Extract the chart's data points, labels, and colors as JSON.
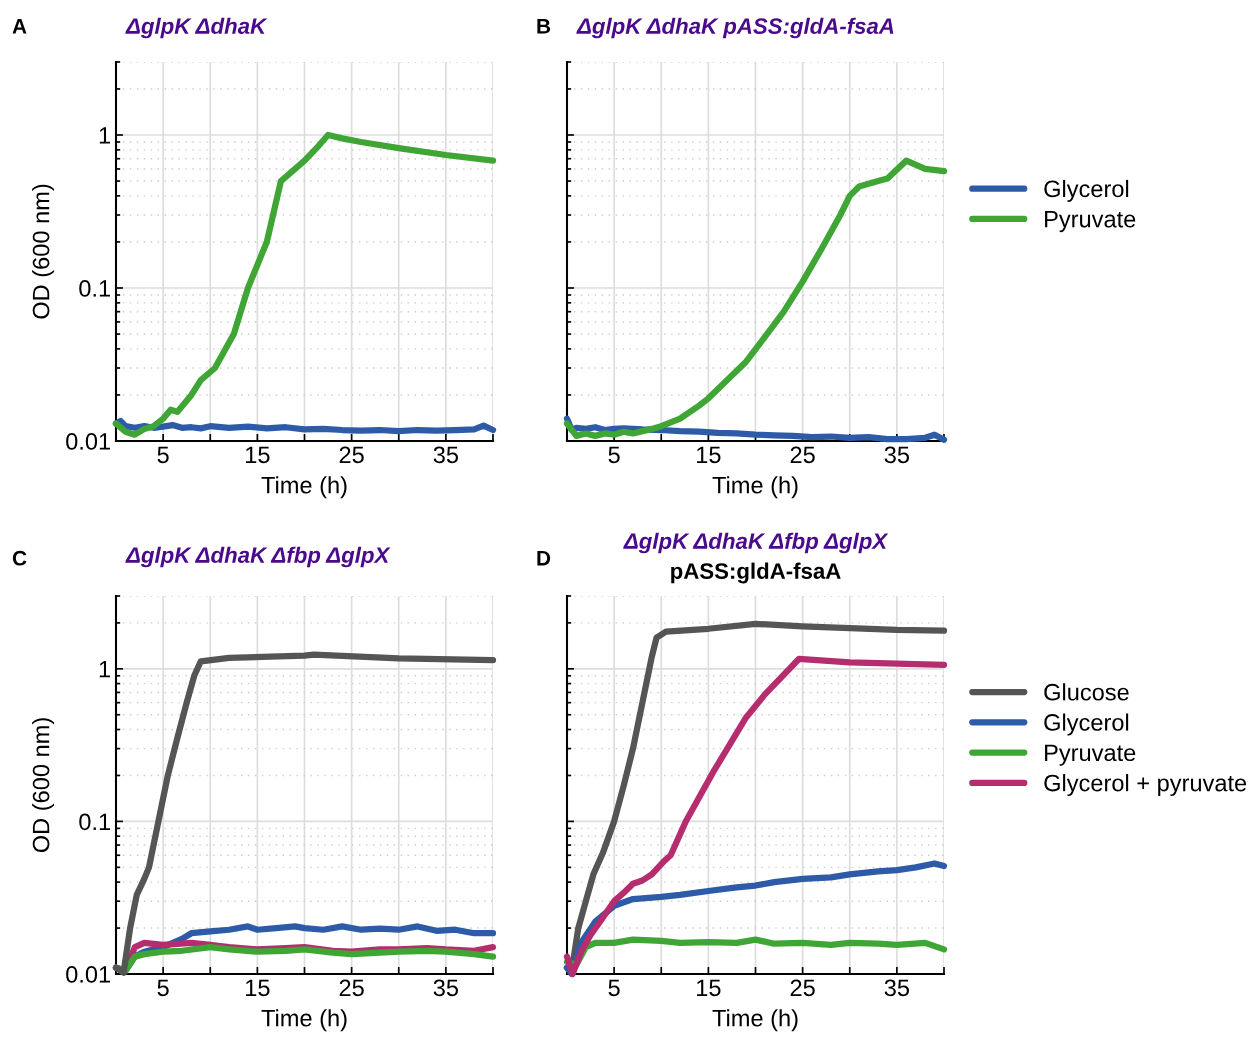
{
  "chart_data": [
    {
      "type": "line",
      "title": "ΔglpK ΔdhaK",
      "annotations": [
        "A"
      ],
      "xlabel": "Time (h)",
      "ylabel": "OD (600 nm)",
      "log": "y",
      "xlim": [
        0,
        40
      ],
      "ylim": [
        0.01,
        3
      ],
      "xticks": [
        5,
        {
          "value": 10,
          "label": null
        },
        15,
        {
          "value": 20,
          "label": null
        },
        25,
        {
          "value": 30,
          "label": null
        },
        35,
        {
          "value": 40,
          "label": null
        }
      ],
      "yticks": [
        0.01,
        {
          "value": 0.02,
          "label": null
        },
        {
          "value": 0.03,
          "label": null
        },
        {
          "value": 0.04,
          "label": null
        },
        {
          "value": 0.05,
          "label": null
        },
        {
          "value": 0.06,
          "label": null
        },
        {
          "value": 0.07,
          "label": null
        },
        {
          "value": 0.08,
          "label": null
        },
        {
          "value": 0.09,
          "label": null
        },
        0.1,
        {
          "value": 0.2,
          "label": null
        },
        {
          "value": 0.3,
          "label": null
        },
        {
          "value": 0.4,
          "label": null
        },
        {
          "value": 0.5,
          "label": null
        },
        {
          "value": 0.6,
          "label": null
        },
        {
          "value": 0.7,
          "label": null
        },
        {
          "value": 0.8,
          "label": null
        },
        {
          "value": 0.9,
          "label": null
        },
        1,
        {
          "value": 2,
          "label": null
        },
        {
          "value": 3,
          "label": null
        }
      ],
      "grid": true,
      "legend": false,
      "series": [
        {
          "color": "#2e5ba8",
          "x": [
            0,
            0.5,
            1,
            2,
            3,
            4,
            5,
            6,
            7,
            8,
            9,
            10,
            12,
            14,
            16,
            18,
            20,
            22,
            24,
            26,
            28,
            30,
            32,
            34,
            36,
            38,
            39,
            40
          ],
          "values": [
            0.013,
            0.0135,
            0.0125,
            0.0122,
            0.0125,
            0.0122,
            0.0124,
            0.0127,
            0.0122,
            0.0123,
            0.0121,
            0.0125,
            0.0122,
            0.0124,
            0.0121,
            0.0123,
            0.0119,
            0.012,
            0.0118,
            0.0117,
            0.0118,
            0.0116,
            0.0118,
            0.0117,
            0.0118,
            0.0119,
            0.0126,
            0.0118
          ]
        },
        {
          "color": "#3fa535",
          "x": [
            0,
            1,
            2,
            3,
            4,
            5,
            5.8,
            6.5,
            8,
            9,
            10.5,
            12.5,
            14,
            16,
            17.5,
            19,
            20,
            21.5,
            22.5,
            24,
            26,
            30,
            35,
            40
          ],
          "values": [
            0.013,
            0.0115,
            0.011,
            0.012,
            0.0125,
            0.014,
            0.016,
            0.0155,
            0.02,
            0.025,
            0.03,
            0.05,
            0.1,
            0.2,
            0.5,
            0.6,
            0.68,
            0.85,
            1.0,
            0.95,
            0.9,
            0.82,
            0.74,
            0.68
          ]
        }
      ]
    },
    {
      "type": "line",
      "title": "ΔglpK ΔdhaK pASS:gldA-fsaA",
      "annotations": [
        "B"
      ],
      "xlabel": "Time (h)",
      "log": "y",
      "xlim": [
        0,
        40
      ],
      "ylim": [
        0.01,
        3
      ],
      "tick_labels": "x",
      "xticks": [
        5,
        {
          "value": 10,
          "label": null
        },
        15,
        {
          "value": 20,
          "label": null
        },
        25,
        {
          "value": 30,
          "label": null
        },
        35,
        {
          "value": 40,
          "label": null
        }
      ],
      "yticks": [
        0.01,
        {
          "value": 0.02,
          "label": null
        },
        {
          "value": 0.03,
          "label": null
        },
        {
          "value": 0.04,
          "label": null
        },
        {
          "value": 0.05,
          "label": null
        },
        {
          "value": 0.06,
          "label": null
        },
        {
          "value": 0.07,
          "label": null
        },
        {
          "value": 0.08,
          "label": null
        },
        {
          "value": 0.09,
          "label": null
        },
        0.1,
        {
          "value": 0.2,
          "label": null
        },
        {
          "value": 0.3,
          "label": null
        },
        {
          "value": 0.4,
          "label": null
        },
        {
          "value": 0.5,
          "label": null
        },
        {
          "value": 0.6,
          "label": null
        },
        {
          "value": 0.7,
          "label": null
        },
        {
          "value": 0.8,
          "label": null
        },
        {
          "value": 0.9,
          "label": null
        },
        1,
        {
          "value": 2,
          "label": null
        },
        {
          "value": 3,
          "label": null
        }
      ],
      "grid": true,
      "legend": "right",
      "series": [
        {
          "name": "Glycerol",
          "color": "#2e5ba8",
          "x": [
            0,
            0.5,
            1,
            2,
            3,
            4,
            5,
            6,
            8,
            10,
            12,
            14,
            16,
            18,
            20,
            22,
            24,
            26,
            28,
            30,
            32,
            34,
            36,
            38,
            39,
            40
          ],
          "values": [
            0.014,
            0.0118,
            0.0122,
            0.012,
            0.0123,
            0.0118,
            0.012,
            0.0121,
            0.0119,
            0.0118,
            0.0116,
            0.0115,
            0.0113,
            0.0112,
            0.011,
            0.0109,
            0.0108,
            0.0106,
            0.0107,
            0.0105,
            0.0106,
            0.0103,
            0.0103,
            0.0105,
            0.011,
            0.0102
          ]
        },
        {
          "name": "Pyruvate",
          "color": "#3fa535",
          "x": [
            0,
            1,
            2,
            3,
            4,
            5,
            6,
            7,
            8,
            9,
            10,
            12,
            14,
            15,
            17,
            19,
            21,
            23,
            25,
            27,
            29,
            30,
            31,
            33,
            34,
            36,
            38,
            40
          ],
          "values": [
            0.013,
            0.0108,
            0.0112,
            0.0108,
            0.0112,
            0.011,
            0.0115,
            0.0112,
            0.0116,
            0.012,
            0.0125,
            0.014,
            0.017,
            0.019,
            0.025,
            0.033,
            0.048,
            0.07,
            0.11,
            0.18,
            0.3,
            0.4,
            0.46,
            0.5,
            0.52,
            0.68,
            0.6,
            0.58
          ]
        }
      ]
    },
    {
      "type": "line",
      "title": "ΔglpK ΔdhaK Δfbp ΔglpX",
      "annotations": [
        "C"
      ],
      "xlabel": "Time (h)",
      "ylabel": "OD (600 nm)",
      "log": "y",
      "xlim": [
        0,
        40
      ],
      "ylim": [
        0.01,
        3
      ],
      "xticks": [
        5,
        {
          "value": 10,
          "label": null
        },
        15,
        {
          "value": 20,
          "label": null
        },
        25,
        {
          "value": 30,
          "label": null
        },
        35,
        {
          "value": 40,
          "label": null
        }
      ],
      "yticks": [
        0.01,
        {
          "value": 0.02,
          "label": null
        },
        {
          "value": 0.03,
          "label": null
        },
        {
          "value": 0.04,
          "label": null
        },
        {
          "value": 0.05,
          "label": null
        },
        {
          "value": 0.06,
          "label": null
        },
        {
          "value": 0.07,
          "label": null
        },
        {
          "value": 0.08,
          "label": null
        },
        {
          "value": 0.09,
          "label": null
        },
        0.1,
        {
          "value": 0.2,
          "label": null
        },
        {
          "value": 0.3,
          "label": null
        },
        {
          "value": 0.4,
          "label": null
        },
        {
          "value": 0.5,
          "label": null
        },
        {
          "value": 0.6,
          "label": null
        },
        {
          "value": 0.7,
          "label": null
        },
        {
          "value": 0.8,
          "label": null
        },
        {
          "value": 0.9,
          "label": null
        },
        1,
        {
          "value": 2,
          "label": null
        },
        {
          "value": 3,
          "label": null
        }
      ],
      "grid": true,
      "legend": false,
      "series": [
        {
          "color": "#2e5ba8",
          "x": [
            0,
            1,
            2,
            3,
            5,
            7,
            8,
            10,
            12,
            14,
            15,
            17,
            19,
            20,
            22,
            24,
            26,
            28,
            30,
            32,
            34,
            36,
            38,
            40
          ],
          "values": [
            0.011,
            0.0105,
            0.013,
            0.014,
            0.015,
            0.017,
            0.0185,
            0.019,
            0.0195,
            0.0205,
            0.0195,
            0.02,
            0.0205,
            0.02,
            0.0195,
            0.0205,
            0.0195,
            0.0198,
            0.0195,
            0.0205,
            0.0192,
            0.0195,
            0.0185,
            0.0185
          ]
        },
        {
          "color": "#b52d6e",
          "x": [
            0,
            1,
            2,
            3,
            5,
            8,
            10,
            12,
            15,
            18,
            20,
            23,
            25,
            28,
            30,
            33,
            35,
            38,
            40
          ],
          "values": [
            0.011,
            0.0105,
            0.015,
            0.016,
            0.0155,
            0.016,
            0.0155,
            0.015,
            0.0145,
            0.0148,
            0.015,
            0.0142,
            0.014,
            0.0145,
            0.0145,
            0.0148,
            0.0145,
            0.0142,
            0.015
          ]
        },
        {
          "color": "#3fa535",
          "x": [
            0,
            1,
            2,
            3,
            5,
            7,
            10,
            12,
            15,
            18,
            20,
            23,
            25,
            28,
            30,
            33,
            35,
            38,
            40
          ],
          "values": [
            0.011,
            0.0105,
            0.013,
            0.0135,
            0.014,
            0.0142,
            0.015,
            0.0145,
            0.014,
            0.0142,
            0.0145,
            0.0138,
            0.0135,
            0.0138,
            0.014,
            0.0142,
            0.014,
            0.0135,
            0.013
          ]
        },
        {
          "color": "#555555",
          "x": [
            0,
            0.8,
            1.5,
            2.2,
            3,
            3.5,
            4.5,
            5.5,
            6.5,
            7.5,
            8.3,
            9,
            12,
            20,
            21,
            30,
            40
          ],
          "values": [
            0.011,
            0.0102,
            0.02,
            0.033,
            0.042,
            0.05,
            0.1,
            0.2,
            0.35,
            0.6,
            0.9,
            1.12,
            1.18,
            1.22,
            1.24,
            1.17,
            1.14
          ]
        }
      ]
    },
    {
      "type": "line",
      "title": "ΔglpK ΔdhaK Δfbp ΔglpX",
      "subtitle": "pASS:gldA-fsaA",
      "annotations": [
        "D"
      ],
      "xlabel": "Time (h)",
      "log": "y",
      "xlim": [
        0,
        40
      ],
      "ylim": [
        0.01,
        3
      ],
      "tick_labels": "x",
      "xticks": [
        5,
        {
          "value": 10,
          "label": null
        },
        15,
        {
          "value": 20,
          "label": null
        },
        25,
        {
          "value": 30,
          "label": null
        },
        35,
        {
          "value": 40,
          "label": null
        }
      ],
      "yticks": [
        0.01,
        {
          "value": 0.02,
          "label": null
        },
        {
          "value": 0.03,
          "label": null
        },
        {
          "value": 0.04,
          "label": null
        },
        {
          "value": 0.05,
          "label": null
        },
        {
          "value": 0.06,
          "label": null
        },
        {
          "value": 0.07,
          "label": null
        },
        {
          "value": 0.08,
          "label": null
        },
        {
          "value": 0.09,
          "label": null
        },
        0.1,
        {
          "value": 0.2,
          "label": null
        },
        {
          "value": 0.3,
          "label": null
        },
        {
          "value": 0.4,
          "label": null
        },
        {
          "value": 0.5,
          "label": null
        },
        {
          "value": 0.6,
          "label": null
        },
        {
          "value": 0.7,
          "label": null
        },
        {
          "value": 0.8,
          "label": null
        },
        {
          "value": 0.9,
          "label": null
        },
        1,
        {
          "value": 2,
          "label": null
        },
        {
          "value": 3,
          "label": null
        }
      ],
      "grid": true,
      "legend": "right",
      "series": [
        {
          "name": "Glucose",
          "color": "#555555",
          "x": [
            0,
            0.5,
            1.2,
            2,
            2.8,
            3.8,
            5,
            6,
            7,
            8,
            9,
            9.5,
            10.5,
            15,
            20,
            25,
            30,
            35,
            40
          ],
          "values": [
            0.011,
            0.0105,
            0.02,
            0.03,
            0.045,
            0.062,
            0.1,
            0.17,
            0.3,
            0.6,
            1.2,
            1.6,
            1.75,
            1.83,
            1.97,
            1.9,
            1.85,
            1.8,
            1.78
          ]
        },
        {
          "name": "Glycerol",
          "color": "#2e5ba8",
          "x": [
            0,
            0.5,
            1.5,
            3,
            5,
            7,
            10,
            12,
            15,
            18,
            20,
            22,
            25,
            28,
            30,
            33,
            35,
            37,
            39,
            40
          ],
          "values": [
            0.011,
            0.01,
            0.016,
            0.022,
            0.028,
            0.031,
            0.032,
            0.033,
            0.035,
            0.037,
            0.038,
            0.04,
            0.042,
            0.043,
            0.045,
            0.047,
            0.048,
            0.05,
            0.053,
            0.051
          ]
        },
        {
          "name": "Pyruvate",
          "color": "#3fa535",
          "x": [
            0,
            1,
            2,
            3,
            5,
            7,
            10,
            12,
            15,
            18,
            20,
            22,
            25,
            28,
            30,
            33,
            35,
            38,
            40
          ],
          "values": [
            0.012,
            0.0115,
            0.015,
            0.016,
            0.016,
            0.0168,
            0.0165,
            0.016,
            0.0162,
            0.016,
            0.0168,
            0.0158,
            0.016,
            0.0155,
            0.016,
            0.0158,
            0.0155,
            0.016,
            0.0145
          ]
        },
        {
          "name": "Glycerol + pyruvate",
          "color": "#b52d6e",
          "x": [
            0,
            0.6,
            1.5,
            2.5,
            3.5,
            5,
            6,
            7,
            8,
            9,
            10.3,
            11,
            12.6,
            15.5,
            19,
            21,
            24.6,
            30,
            40
          ],
          "values": [
            0.013,
            0.01,
            0.014,
            0.018,
            0.022,
            0.03,
            0.034,
            0.039,
            0.041,
            0.045,
            0.055,
            0.06,
            0.1,
            0.21,
            0.48,
            0.68,
            1.16,
            1.1,
            1.06
          ]
        }
      ]
    }
  ]
}
